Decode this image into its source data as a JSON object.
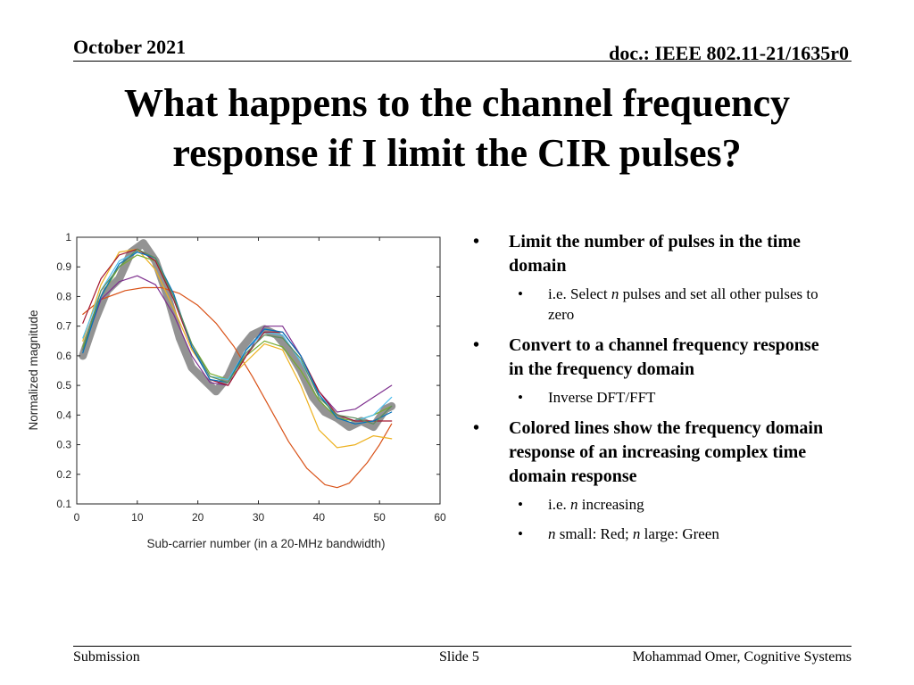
{
  "header": {
    "date": "October 2021",
    "doc": "doc.: IEEE 802.11-21/1635r0"
  },
  "title": {
    "line1": "What happens to the channel frequency",
    "line2": "response if I limit the CIR pulses?"
  },
  "bullets": [
    {
      "text": "Limit the number of pulses in the time domain",
      "subs": [
        {
          "pre": "i.e. Select ",
          "em": "n",
          "post": " pulses and set all other pulses to zero"
        }
      ]
    },
    {
      "text": "Convert to a channel frequency response in the frequency domain",
      "subs": [
        {
          "pre": "Inverse DFT/FFT",
          "em": "",
          "post": ""
        }
      ]
    },
    {
      "text": "Colored lines show the frequency domain response of an increasing complex time domain response",
      "subs": [
        {
          "pre": "i.e. ",
          "em": "n",
          "post": " increasing"
        },
        {
          "pre": "",
          "em": "n",
          "post": " small: Red; ",
          "em2": "n",
          "post2": " large: Green"
        }
      ]
    }
  ],
  "footer": {
    "left": "Submission",
    "center": "Slide 5",
    "right": "Mohammad Omer, Cognitive Systems"
  },
  "chart_data": {
    "type": "line",
    "xlabel": "Sub-carrier number (in a 20-MHz bandwidth)",
    "ylabel": "Normalized magnitude",
    "xlim": [
      0,
      60
    ],
    "ylim": [
      0.1,
      1
    ],
    "xticks": [
      0,
      10,
      20,
      30,
      40,
      50,
      60
    ],
    "yticks": [
      0.1,
      0.2,
      0.3,
      0.4,
      0.5,
      0.6,
      0.7,
      0.8,
      0.9,
      1
    ],
    "grid": false,
    "series": [
      {
        "color": "#808080",
        "x": [
          1,
          3,
          5,
          7,
          9,
          11,
          13,
          15,
          17,
          19,
          21,
          23,
          25,
          27,
          29,
          31,
          33,
          35,
          37,
          39,
          41,
          43,
          45,
          47,
          49,
          51,
          52
        ],
        "y": [
          0.6,
          0.72,
          0.82,
          0.86,
          0.95,
          0.98,
          0.92,
          0.8,
          0.66,
          0.56,
          0.52,
          0.48,
          0.53,
          0.62,
          0.67,
          0.69,
          0.67,
          0.62,
          0.55,
          0.46,
          0.41,
          0.39,
          0.36,
          0.38,
          0.36,
          0.42,
          0.43
        ]
      },
      {
        "color": "#d95319",
        "x": [
          1,
          4,
          8,
          11,
          14,
          17,
          20,
          23,
          26,
          29,
          32,
          35,
          38,
          41,
          43,
          45,
          48,
          50,
          52
        ],
        "y": [
          0.74,
          0.79,
          0.82,
          0.83,
          0.83,
          0.81,
          0.77,
          0.71,
          0.63,
          0.53,
          0.42,
          0.31,
          0.22,
          0.165,
          0.155,
          0.17,
          0.24,
          0.3,
          0.37
        ]
      },
      {
        "color": "#edb120",
        "x": [
          1,
          4,
          7,
          10,
          13,
          16,
          19,
          22,
          25,
          28,
          31,
          34,
          37,
          40,
          43,
          46,
          49,
          52
        ],
        "y": [
          0.65,
          0.84,
          0.95,
          0.96,
          0.89,
          0.76,
          0.62,
          0.53,
          0.52,
          0.58,
          0.64,
          0.62,
          0.5,
          0.35,
          0.29,
          0.3,
          0.33,
          0.32
        ]
      },
      {
        "color": "#7e2f8e",
        "x": [
          1,
          4,
          7,
          10,
          13,
          16,
          19,
          22,
          25,
          28,
          31,
          34,
          37,
          40,
          43,
          46,
          49,
          52
        ],
        "y": [
          0.62,
          0.79,
          0.85,
          0.87,
          0.84,
          0.74,
          0.6,
          0.51,
          0.5,
          0.6,
          0.7,
          0.7,
          0.6,
          0.48,
          0.41,
          0.42,
          0.46,
          0.5
        ]
      },
      {
        "color": "#77ac30",
        "x": [
          1,
          4,
          7,
          10,
          13,
          16,
          19,
          22,
          25,
          28,
          31,
          34,
          37,
          40,
          43,
          46,
          49,
          52
        ],
        "y": [
          0.63,
          0.8,
          0.9,
          0.94,
          0.92,
          0.8,
          0.64,
          0.54,
          0.52,
          0.6,
          0.65,
          0.63,
          0.55,
          0.45,
          0.39,
          0.38,
          0.4,
          0.43
        ]
      },
      {
        "color": "#4dbeee",
        "x": [
          1,
          4,
          7,
          10,
          13,
          16,
          19,
          22,
          25,
          28,
          31,
          34,
          37,
          40,
          43,
          46,
          49,
          52
        ],
        "y": [
          0.66,
          0.82,
          0.92,
          0.95,
          0.93,
          0.8,
          0.63,
          0.53,
          0.52,
          0.62,
          0.68,
          0.67,
          0.58,
          0.47,
          0.4,
          0.38,
          0.4,
          0.46
        ]
      },
      {
        "color": "#a2142f",
        "x": [
          1,
          4,
          7,
          10,
          13,
          16,
          19,
          22,
          25,
          28,
          31,
          34,
          37,
          40,
          43,
          46,
          49,
          52
        ],
        "y": [
          0.71,
          0.86,
          0.94,
          0.96,
          0.92,
          0.79,
          0.63,
          0.52,
          0.5,
          0.6,
          0.68,
          0.68,
          0.6,
          0.48,
          0.4,
          0.38,
          0.38,
          0.38
        ]
      },
      {
        "color": "#0072bd",
        "x": [
          1,
          4,
          7,
          10,
          13,
          16,
          19,
          22,
          25,
          28,
          31,
          34,
          37,
          40,
          43,
          46,
          49,
          52
        ],
        "y": [
          0.61,
          0.8,
          0.91,
          0.95,
          0.93,
          0.81,
          0.63,
          0.52,
          0.51,
          0.62,
          0.69,
          0.68,
          0.6,
          0.47,
          0.39,
          0.37,
          0.38,
          0.41
        ]
      },
      {
        "color": "#5b8c5a",
        "x": [
          1,
          4,
          7,
          10,
          13,
          16,
          19,
          22,
          25,
          28,
          31,
          34,
          37,
          40,
          43,
          46,
          49,
          52
        ],
        "y": [
          0.62,
          0.82,
          0.9,
          0.96,
          0.93,
          0.8,
          0.64,
          0.53,
          0.51,
          0.61,
          0.67,
          0.66,
          0.59,
          0.46,
          0.4,
          0.39,
          0.37,
          0.43
        ]
      }
    ]
  }
}
